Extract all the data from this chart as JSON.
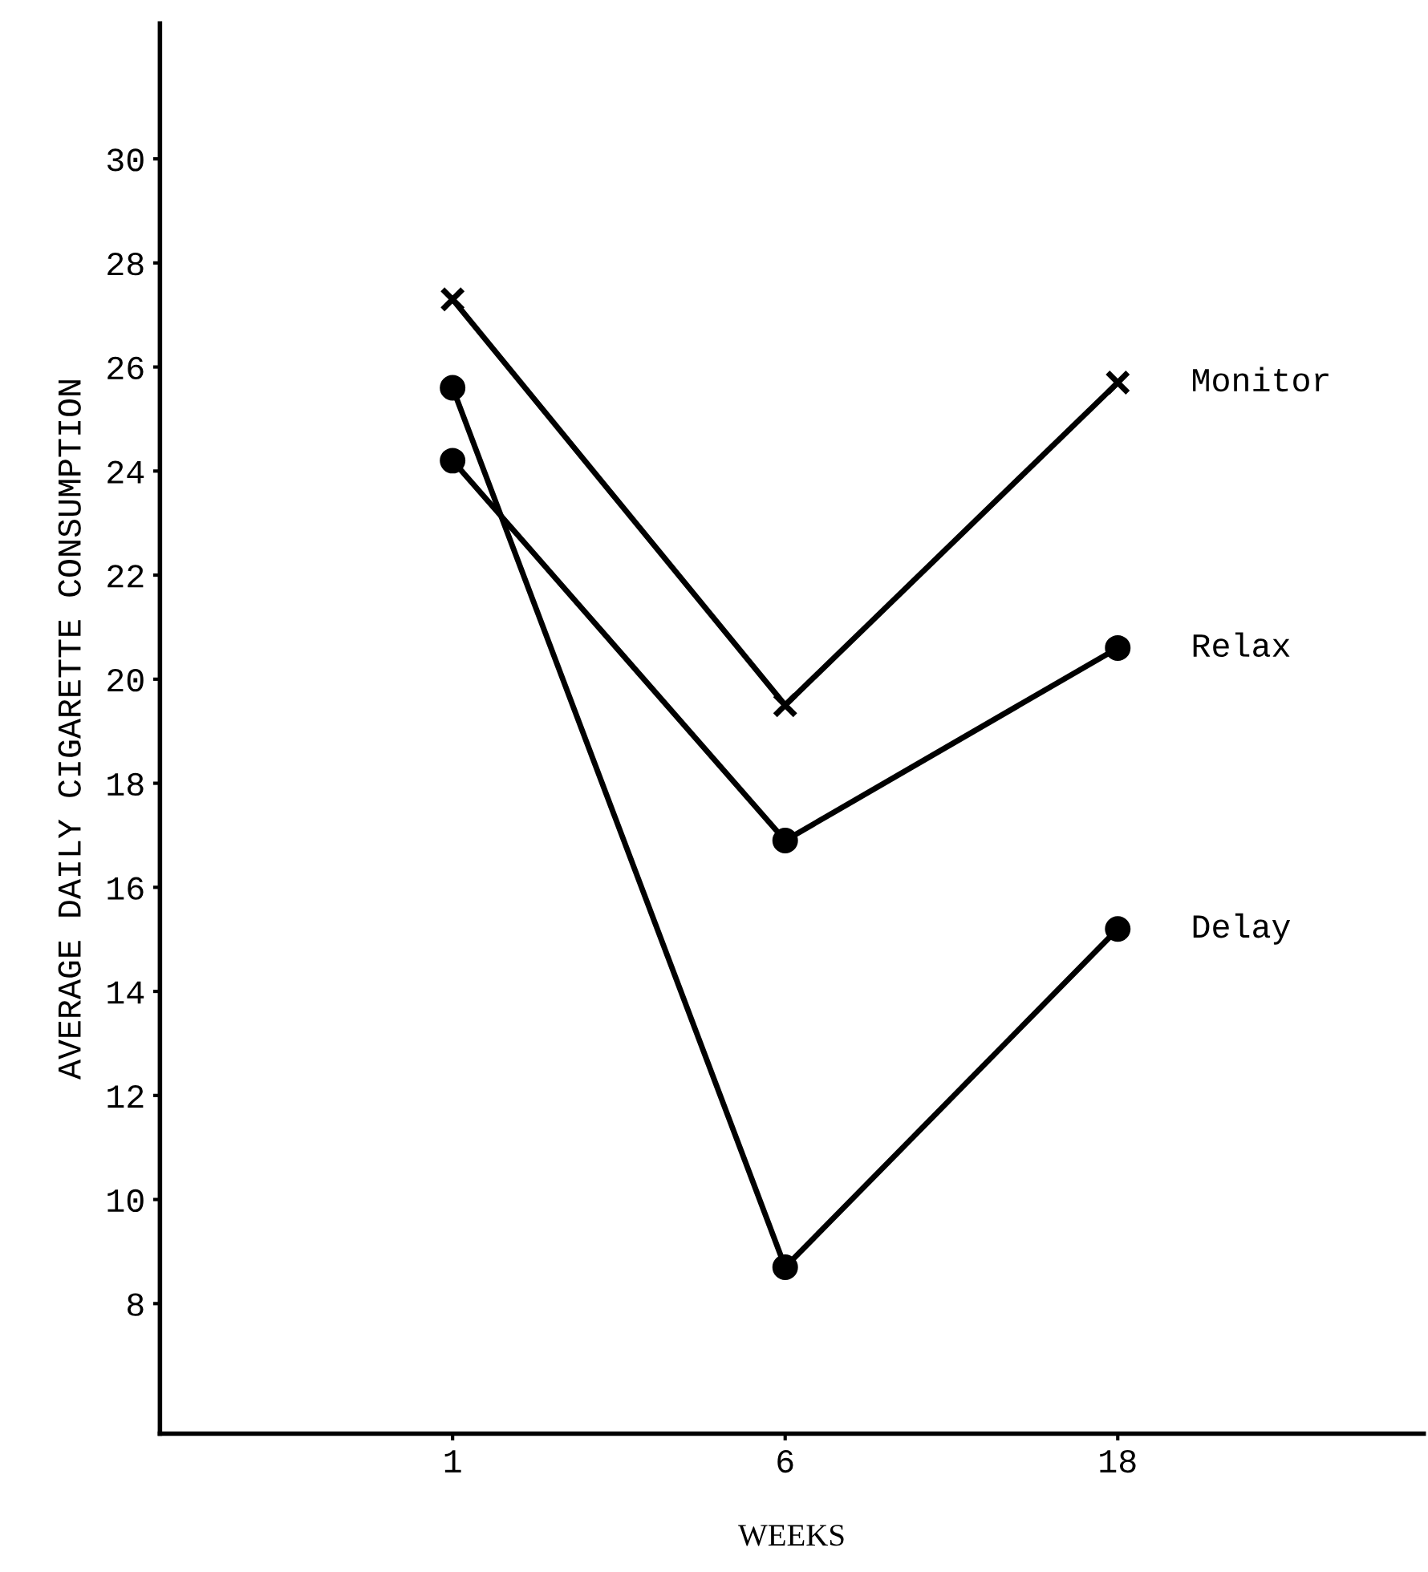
{
  "chart_data": {
    "type": "line",
    "xlabel": "WEEKS",
    "ylabel": "AVERAGE DAILY CIGARETTE CONSUMPTION",
    "categories": [
      "1",
      "6",
      "18"
    ],
    "series": [
      {
        "name": "Monitor",
        "color": "#000000",
        "marker": "cross",
        "values": [
          27.3,
          19.5,
          25.7
        ]
      },
      {
        "name": "Relax",
        "color": "#000000",
        "marker": "circle",
        "values": [
          24.2,
          16.9,
          20.6
        ]
      },
      {
        "name": "Delay",
        "color": "#000000",
        "marker": "circle",
        "values": [
          25.6,
          8.7,
          15.2
        ]
      }
    ],
    "ylim": [
      5.5,
      32.6
    ],
    "yticks": [
      8,
      10,
      12,
      14,
      16,
      18,
      20,
      22,
      24,
      26,
      28,
      30
    ],
    "grid": false,
    "legend": false,
    "line_style": "solid"
  }
}
